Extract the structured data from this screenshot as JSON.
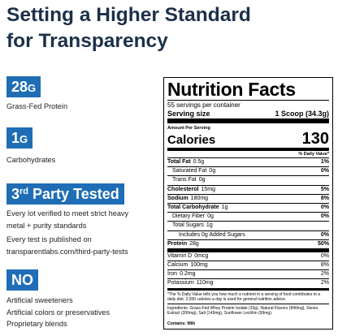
{
  "header": {
    "title": [
      "Setting a Higher Standard",
      "for Transparency"
    ]
  },
  "highlights": [
    {
      "value": "28",
      "unit": "G",
      "label": "Grass-Fed Protein"
    },
    {
      "value": "1",
      "unit": "G",
      "label": "Carbohydrates"
    },
    {
      "number": "3",
      "ordinal": "rd",
      "text": "Party Tested",
      "notes": [
        [
          "Every lot verified to meet strict heavy",
          "metal + purity standards"
        ],
        [
          "Every test is published on",
          "transparentlabs.com/third-party-tests"
        ]
      ]
    },
    {
      "value": "NO",
      "items": [
        "Artificial sweeteners",
        "Artificial colors or preservatives",
        "Proprietary blends"
      ]
    }
  ],
  "nutrition": {
    "title": "Nutrition Facts",
    "servings": "55 servings per container",
    "serving_size_label": "Serving size",
    "serving_size": "1 Scoop (34.3g)",
    "amount_per_serving": "Amount Per Serving",
    "calories_label": "Calories",
    "calories": "130",
    "dv_header": "% Daily Value*",
    "rows": [
      {
        "name": "Total Fat",
        "amount": "0.5g",
        "dv": "1%"
      },
      {
        "name": "Saturated Fat",
        "amount": "0g",
        "dv": "0%"
      },
      {
        "name": "Trans Fat",
        "amount": "0g"
      },
      {
        "name": "Cholesterol",
        "amount": "15mg",
        "dv": "5%"
      },
      {
        "name": "Sodium",
        "amount": "180mg",
        "dv": "8%"
      },
      {
        "name": "Total Carbohydrate",
        "amount": "1g",
        "dv": "0%"
      },
      {
        "name": "Dietary Fiber",
        "amount": "0g",
        "dv": "0%"
      },
      {
        "name": "Total Sugars",
        "amount": "1g"
      },
      {
        "name": "Includes 0g Added Sugars",
        "dv": "0%"
      },
      {
        "name": "Protein",
        "amount": "28g",
        "dv": "50%"
      }
    ],
    "vitamins": [
      {
        "name": "Vitamin D",
        "amount": "0mcg",
        "dv": "0%"
      },
      {
        "name": "Calcium",
        "amount": "100mg",
        "dv": "8%"
      },
      {
        "name": "Iron",
        "amount": "0.2mg",
        "dv": "2%"
      },
      {
        "name": "Potassium",
        "amount": "110mg",
        "dv": "2%"
      }
    ],
    "footnote": "*The % Daily Value tells you how much a nutrient in a serving of food contributes to a daily diet. 2,000 calories a day is used for general nutrition advice.",
    "ingredients": "Ingredients: Grass-Fed Whey Protein Isolate (33g), Natural Flavors (840mg), Stevia Extract (200mg), Salt (149mg), Sunflower Lecithin (99mg).",
    "contains": "Contains: Milk"
  }
}
